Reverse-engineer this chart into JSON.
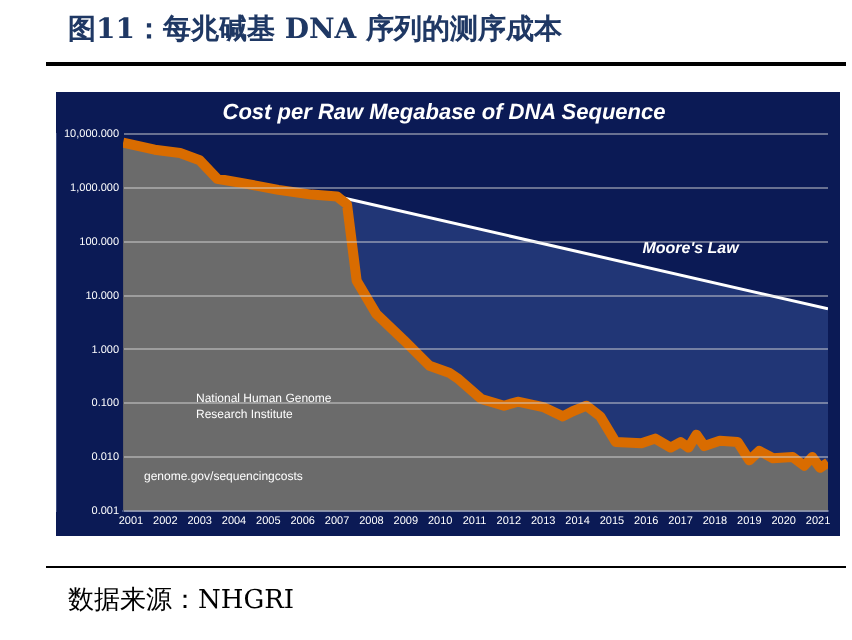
{
  "chart_data": {
    "type": "line",
    "title": "图11：每兆碱基 DNA 序列的测序成本",
    "subtitle": "Cost per Raw Megabase of DNA Sequence",
    "annotations": [
      "National Human Genome Research Institute",
      "genome.gov/sequencingcosts",
      "数据来源：NHGRI"
    ],
    "series": [
      {
        "name": "Moore's Law",
        "type": "area",
        "color": "#ffffff",
        "x": [
          2007.0,
          2021.29
        ],
        "values": [
          700,
          5.7
        ]
      },
      {
        "type": "area",
        "color": "#d96c00",
        "x": [
          2000.77,
          2001.69,
          2002.43,
          2003.0,
          2003.51,
          2004.37,
          2005.29,
          2006.26,
          2007.0,
          2007.29,
          2007.57,
          2008.14,
          2008.94,
          2009.69,
          2010.26,
          2010.54,
          2011.2,
          2011.86,
          2012.26,
          2013.0,
          2013.57,
          2013.86,
          2014.26,
          2014.66,
          2015.11,
          2015.86,
          2016.26,
          2016.71,
          2017.0,
          2017.23,
          2017.46,
          2017.69,
          2018.14,
          2018.66,
          2019.0,
          2019.29,
          2019.69,
          2020.26,
          2020.6,
          2020.83,
          2021.06,
          2021.29
        ],
        "values": [
          7000,
          5200,
          4500,
          3300,
          1500,
          1200,
          930,
          760,
          700,
          500,
          19,
          4.6,
          1.5,
          0.5,
          0.37,
          0.28,
          0.12,
          0.09,
          0.107,
          0.085,
          0.057,
          0.071,
          0.09,
          0.057,
          0.019,
          0.018,
          0.022,
          0.015,
          0.019,
          0.015,
          0.026,
          0.016,
          0.02,
          0.019,
          0.0087,
          0.013,
          0.0095,
          0.01,
          0.0069,
          0.01,
          0.0063,
          0.0079
        ]
      }
    ],
    "xlim": [
      2000.77,
      2021.29
    ],
    "xticks": [
      2001,
      2002,
      2003,
      2004,
      2005,
      2006,
      2007,
      2008,
      2009,
      2010,
      2011,
      2012,
      2013,
      2014,
      2015,
      2016,
      2017,
      2018,
      2019,
      2020,
      2021
    ],
    "ylim": [
      0.001,
      10000
    ],
    "yticks": [
      {
        "value": 10000,
        "label": "10,000.000"
      },
      {
        "value": 1000,
        "label": "1,000.000"
      },
      {
        "value": 100,
        "label": "100.000"
      },
      {
        "value": 10,
        "label": "10.000"
      },
      {
        "value": 1,
        "label": "1.000"
      },
      {
        "value": 0.1,
        "label": "0.100"
      },
      {
        "value": 0.01,
        "label": "0.010"
      },
      {
        "value": 0.001,
        "label": "0.001"
      }
    ],
    "log": "y",
    "grid": "y",
    "legend": false,
    "marker": "none",
    "line_style": "solid"
  }
}
